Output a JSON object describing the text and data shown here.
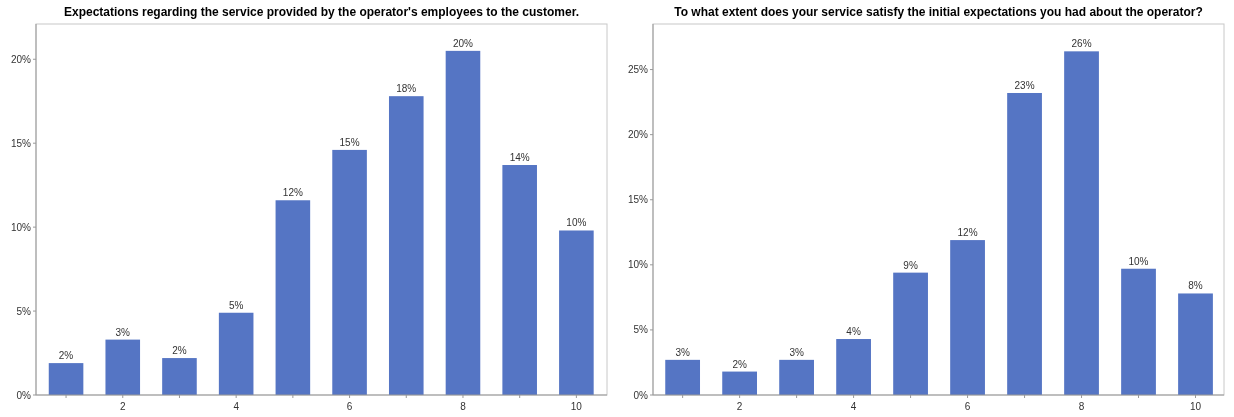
{
  "chart_data": [
    {
      "type": "bar",
      "title": "Expectations regarding the service provided by the operator's employees to the customer.",
      "x": [
        1,
        2,
        3,
        4,
        5,
        6,
        7,
        8,
        9,
        10
      ],
      "values": [
        1.9,
        3.3,
        2.2,
        4.9,
        11.6,
        14.6,
        17.8,
        20.5,
        13.7,
        9.8
      ],
      "value_labels": [
        "2%",
        "3%",
        "2%",
        "5%",
        "12%",
        "15%",
        "18%",
        "20%",
        "14%",
        "10%"
      ],
      "color": "#5575c4",
      "xlim": [
        0.47,
        10.54
      ],
      "xticks": [
        {
          "value": 1,
          "label": null
        },
        2,
        {
          "value": 3,
          "label": null
        },
        4,
        {
          "value": 5,
          "label": null
        },
        6,
        {
          "value": 7,
          "label": null
        },
        8,
        {
          "value": 9,
          "label": null
        },
        10
      ],
      "ylim": [
        0,
        22.1
      ],
      "yticks": [
        {
          "value": 0,
          "label": "0%"
        },
        {
          "value": 5,
          "label": "5%"
        },
        {
          "value": 10,
          "label": "10%"
        },
        {
          "value": 15,
          "label": "15%"
        },
        {
          "value": 20,
          "label": "20%"
        }
      ],
      "grid": false
    },
    {
      "type": "bar",
      "title": "To what extent does your service satisfy the initial expectations you had about the operator?",
      "x": [
        1,
        2,
        3,
        4,
        5,
        6,
        7,
        8,
        9,
        10
      ],
      "values": [
        2.7,
        1.8,
        2.7,
        4.3,
        9.4,
        11.9,
        23.2,
        26.4,
        9.7,
        7.8
      ],
      "value_labels": [
        "3%",
        "2%",
        "3%",
        "4%",
        "9%",
        "12%",
        "23%",
        "26%",
        "10%",
        "8%"
      ],
      "color": "#5575c4",
      "xlim": [
        0.48,
        10.5
      ],
      "xticks": [
        {
          "value": 1,
          "label": null
        },
        2,
        {
          "value": 3,
          "label": null
        },
        4,
        {
          "value": 5,
          "label": null
        },
        6,
        {
          "value": 7,
          "label": null
        },
        8,
        {
          "value": 9,
          "label": null
        },
        10
      ],
      "ylim": [
        0,
        28.5
      ],
      "yticks": [
        {
          "value": 0,
          "label": "0%"
        },
        {
          "value": 5,
          "label": "5%"
        },
        {
          "value": 10,
          "label": "10%"
        },
        {
          "value": 15,
          "label": "15%"
        },
        {
          "value": 20,
          "label": "20%"
        },
        {
          "value": 25,
          "label": "25%"
        }
      ],
      "grid": false
    }
  ]
}
